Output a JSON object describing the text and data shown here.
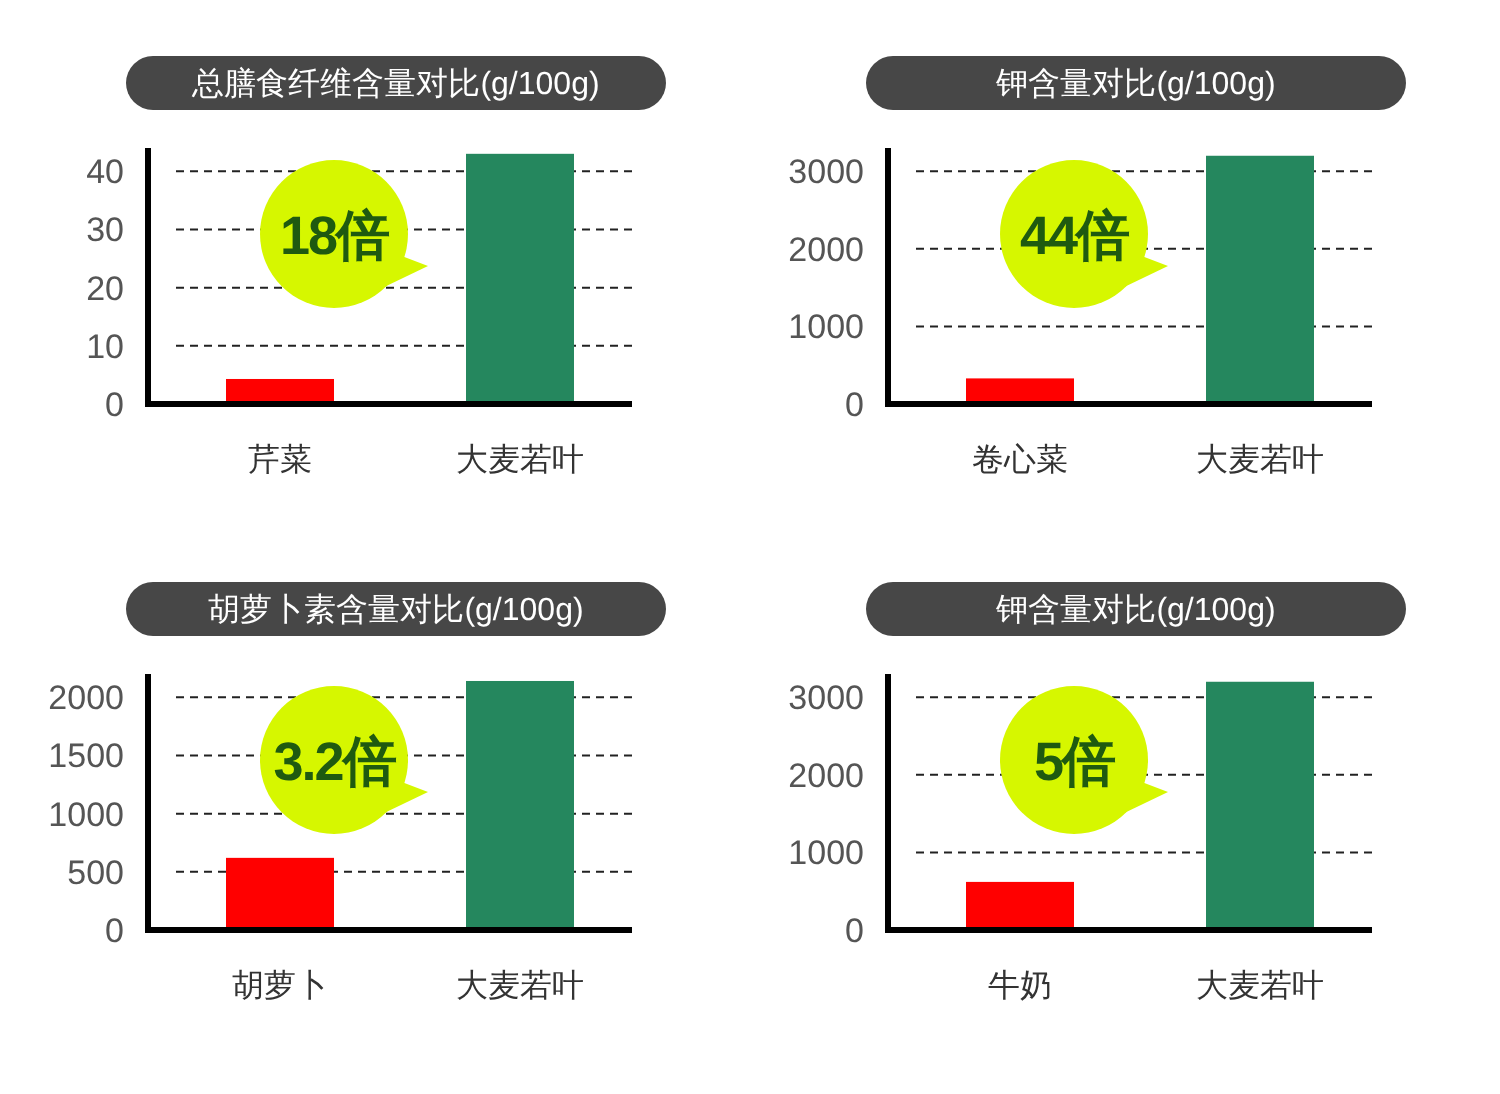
{
  "chart_data": [
    {
      "type": "bar",
      "title": "总膳食纤维含量对比(g/100g)",
      "categories": [
        "芹菜",
        "大麦若叶"
      ],
      "values": [
        4.3,
        43
      ],
      "colors": [
        "#ff0000",
        "#25875e"
      ],
      "ylim": [
        0,
        44
      ],
      "yticks": [
        0,
        10,
        20,
        30,
        40
      ],
      "grid": "y",
      "annotations": [
        "18倍"
      ]
    },
    {
      "type": "bar",
      "title": "钾含量对比(g/100g)",
      "categories": [
        "卷心菜",
        "大麦若叶"
      ],
      "values": [
        330,
        3200
      ],
      "colors": [
        "#ff0000",
        "#25875e"
      ],
      "ylim": [
        0,
        3300
      ],
      "yticks": [
        0,
        1000,
        2000,
        3000
      ],
      "grid": "y",
      "annotations": [
        "44倍"
      ]
    },
    {
      "type": "bar",
      "title": "胡萝卜素含量对比(g/100g)",
      "categories": [
        "胡萝卜",
        "大麦若叶"
      ],
      "values": [
        620,
        2140
      ],
      "colors": [
        "#ff0000",
        "#25875e"
      ],
      "ylim": [
        0,
        2200
      ],
      "yticks": [
        0,
        500,
        1000,
        1500,
        2000
      ],
      "grid": "y",
      "annotations": [
        "3.2倍"
      ]
    },
    {
      "type": "bar",
      "title": "钾含量对比(g/100g)",
      "categories": [
        "牛奶",
        "大麦若叶"
      ],
      "values": [
        620,
        3200
      ],
      "colors": [
        "#ff0000",
        "#25875e"
      ],
      "ylim": [
        0,
        3300
      ],
      "yticks": [
        0,
        1000,
        2000,
        3000
      ],
      "grid": "y",
      "annotations": [
        "5倍"
      ]
    }
  ]
}
